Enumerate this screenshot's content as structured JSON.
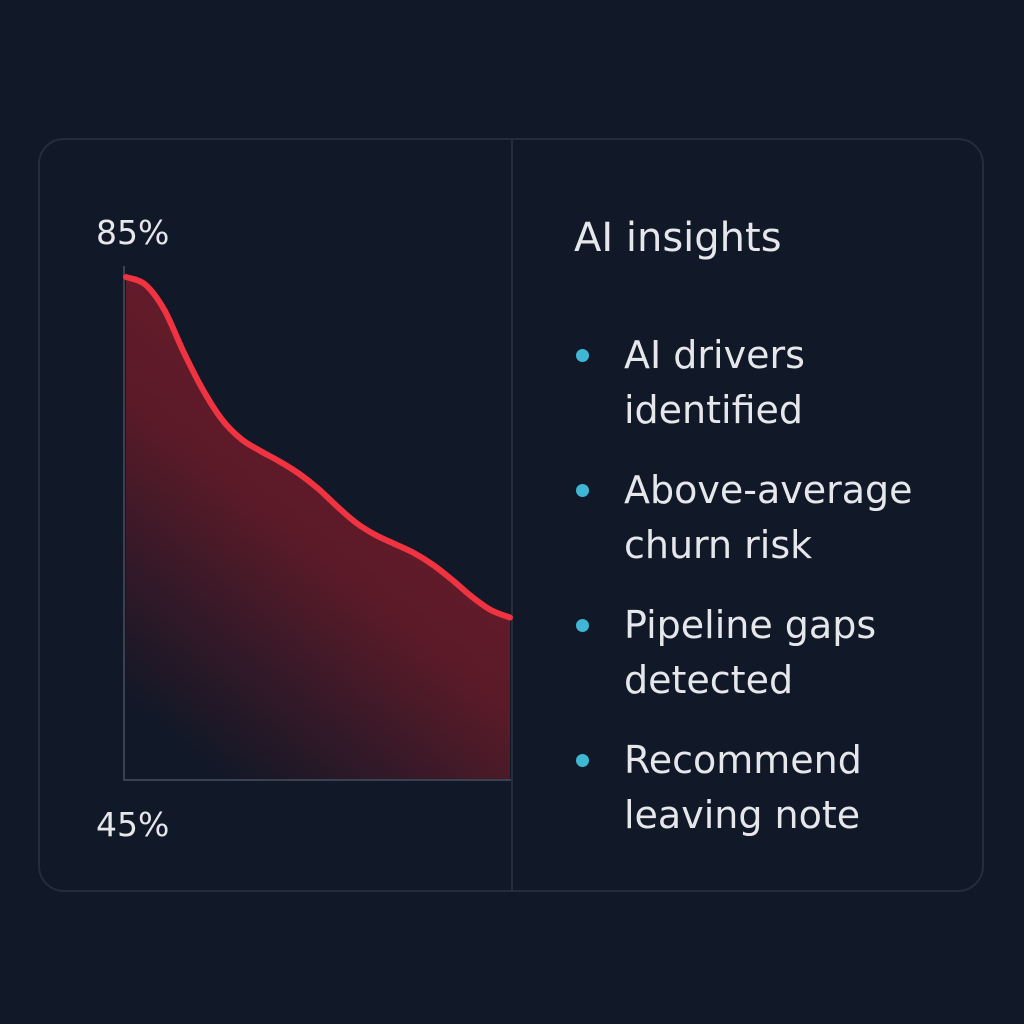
{
  "colors": {
    "background": "#111827",
    "panel_border": "#252d3b",
    "line": "#ef3340",
    "area_fill": "#7a1e2c",
    "bullet": "#3fb6d3",
    "text": "#e5e7eb"
  },
  "chart_data": {
    "type": "area",
    "title": "",
    "xlabel": "",
    "ylabel": "",
    "y_tick_labels": [
      "85%",
      "45%"
    ],
    "ylim": [
      45,
      85
    ],
    "x": [
      0,
      1,
      2,
      3,
      4,
      5,
      6,
      7,
      8,
      9,
      10,
      11,
      12,
      13,
      14,
      15,
      16,
      17,
      18,
      19,
      20
    ],
    "series": [
      {
        "values": [
          82,
          81.5,
          79.8,
          77,
          74.5,
          72.5,
          71.2,
          70.4,
          69.7,
          68.9,
          67.9,
          66.7,
          65.6,
          64.8,
          64.2,
          63.6,
          62.8,
          61.8,
          60.7,
          59.8,
          59.3
        ]
      }
    ],
    "grid": false,
    "legend": "none"
  },
  "insights_panel": {
    "title": "AI insights",
    "icon": "bullet-dot-icon",
    "items": [
      "AI drivers identified",
      "Above-average churn risk",
      "Pipeline gaps detected",
      "Recommend leaving note"
    ]
  }
}
